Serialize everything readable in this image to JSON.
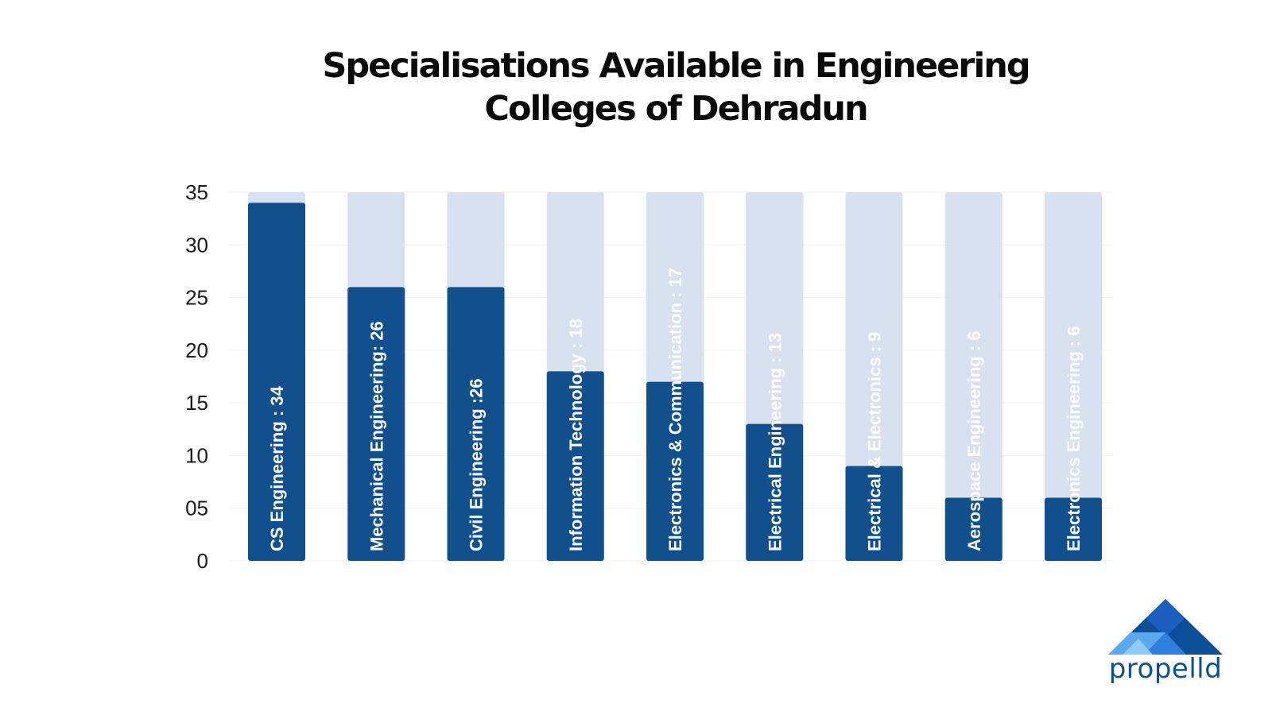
{
  "title": {
    "line1": "Specialisations Available in Engineering",
    "line2": "Colleges of Dehradun"
  },
  "colors": {
    "bar": "#114f8d",
    "track": "#d7e1ef",
    "label_on_bar": "#ffffff",
    "label_on_track": "#ffffff",
    "grid": "#eef1f6"
  },
  "chart_data": {
    "type": "bar",
    "title": "Specialisations Available in Engineering Colleges of Dehradun",
    "xlabel": "",
    "ylabel": "",
    "ylim": [
      0,
      35
    ],
    "yticks": [
      0,
      5,
      10,
      15,
      20,
      25,
      30,
      35
    ],
    "ytick_labels": [
      "0",
      "05",
      "10",
      "15",
      "20",
      "25",
      "30",
      "35"
    ],
    "grid": true,
    "background_bars_max": 35,
    "orientation": "vertical",
    "categories": [
      "CS Engineering",
      "Mechanical Engineering",
      "Civil Engineering",
      "Information Technology",
      "Electronics & Communication",
      "Electrical Engineering",
      "Electrical & Electronics",
      "Aerospace Engineering",
      "Electronics Engineering"
    ],
    "values": [
      34,
      26,
      26,
      18,
      17,
      13,
      9,
      6,
      6
    ],
    "data_labels": [
      "CS Engineering : 34",
      "Mechanical Engineering: 26",
      "Civil Engineering :26",
      "Information Technology : 18",
      "Electronics & Communication : 17",
      "Electrical Engineering : 13",
      "Electrical & Electronics : 9",
      "Aerospace Engineering : 6",
      "Electronics Engineering : 6"
    ]
  },
  "logo": {
    "text": "propelld",
    "icon": "propelld-triangle-icon"
  }
}
